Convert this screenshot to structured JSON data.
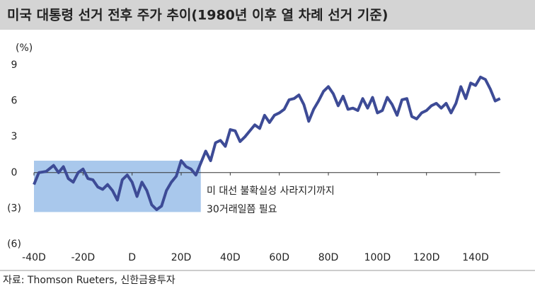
{
  "chart_data": {
    "type": "line",
    "title": "미국 대통령 선거 전후 주가 추이(1980년 이후 열 차례 선거 기준)",
    "y_unit": "(%)",
    "source": "자료: Thomson Rueters, 신한금융투자",
    "annotation": [
      "미 대선 불확실성 사라지기까지",
      "30거래일쯤 필요"
    ],
    "highlight": {
      "x": [
        -40,
        28
      ],
      "y": [
        -3.3,
        1
      ],
      "color": "#a9c8ec"
    },
    "xlim": [
      -40,
      150
    ],
    "xticks": [
      {
        "value": -40,
        "label": "-40D"
      },
      {
        "value": -20,
        "label": "-20D"
      },
      {
        "value": 0,
        "label": "D"
      },
      {
        "value": 20,
        "label": "20D"
      },
      {
        "value": 40,
        "label": "40D"
      },
      {
        "value": 60,
        "label": "60D"
      },
      {
        "value": 80,
        "label": "80D"
      },
      {
        "value": 100,
        "label": "100D"
      },
      {
        "value": 120,
        "label": "120D"
      },
      {
        "value": 140,
        "label": "140D"
      }
    ],
    "ylim": [
      -6,
      9
    ],
    "yticks": [
      9,
      6,
      3,
      0,
      {
        "value": -3,
        "label": "(3)"
      },
      {
        "value": -6,
        "label": "(6)"
      }
    ],
    "x": [
      -40,
      -38,
      -35,
      -32,
      -30,
      -28,
      -26,
      -24,
      -22,
      -20,
      -18,
      -16,
      -14,
      -12,
      -10,
      -8,
      -6,
      -4,
      -2,
      0,
      2,
      4,
      6,
      8,
      10,
      12,
      14,
      16,
      18,
      20,
      22,
      24,
      26,
      28,
      30,
      32,
      34,
      36,
      38,
      40,
      42,
      44,
      46,
      48,
      50,
      52,
      54,
      56,
      58,
      60,
      62,
      64,
      66,
      68,
      70,
      72,
      74,
      76,
      78,
      80,
      82,
      84,
      86,
      88,
      90,
      92,
      94,
      96,
      98,
      100,
      102,
      104,
      106,
      108,
      110,
      112,
      114,
      116,
      118,
      120,
      122,
      124,
      126,
      128,
      130,
      132,
      134,
      136,
      138,
      140,
      142,
      144,
      146,
      148,
      150
    ],
    "series": [
      {
        "name": "주가",
        "color": "#3d4b96",
        "values": [
          -1,
          0,
          0.1,
          0.6,
          0,
          0.5,
          -0.5,
          -0.8,
          0,
          0.3,
          -0.5,
          -0.6,
          -1.2,
          -1.4,
          -1,
          -1.5,
          -2.3,
          -0.6,
          -0.2,
          -0.8,
          -2,
          -0.8,
          -1.5,
          -2.7,
          -3.1,
          -2.8,
          -1.5,
          -0.8,
          -0.3,
          1,
          0.5,
          0.3,
          -0.2,
          0.8,
          1.8,
          1,
          2.5,
          2.7,
          2.2,
          3.6,
          3.5,
          2.6,
          3,
          3.5,
          4,
          3.7,
          4.8,
          4.2,
          4.8,
          5,
          5.3,
          6.1,
          6.2,
          6.5,
          5.7,
          4.3,
          5.3,
          6,
          6.8,
          7.2,
          6.6,
          5.6,
          6.4,
          5.3,
          5.4,
          5.2,
          6.2,
          5.4,
          6.3,
          5,
          5.2,
          6.3,
          5.7,
          4.8,
          6.1,
          6.2,
          4.7,
          4.5,
          5,
          5.2,
          5.6,
          5.8,
          5.4,
          5.8,
          5,
          5.8,
          7.2,
          6.2,
          7.5,
          7.3,
          8,
          7.8,
          7,
          6,
          6.2
        ]
      }
    ]
  }
}
